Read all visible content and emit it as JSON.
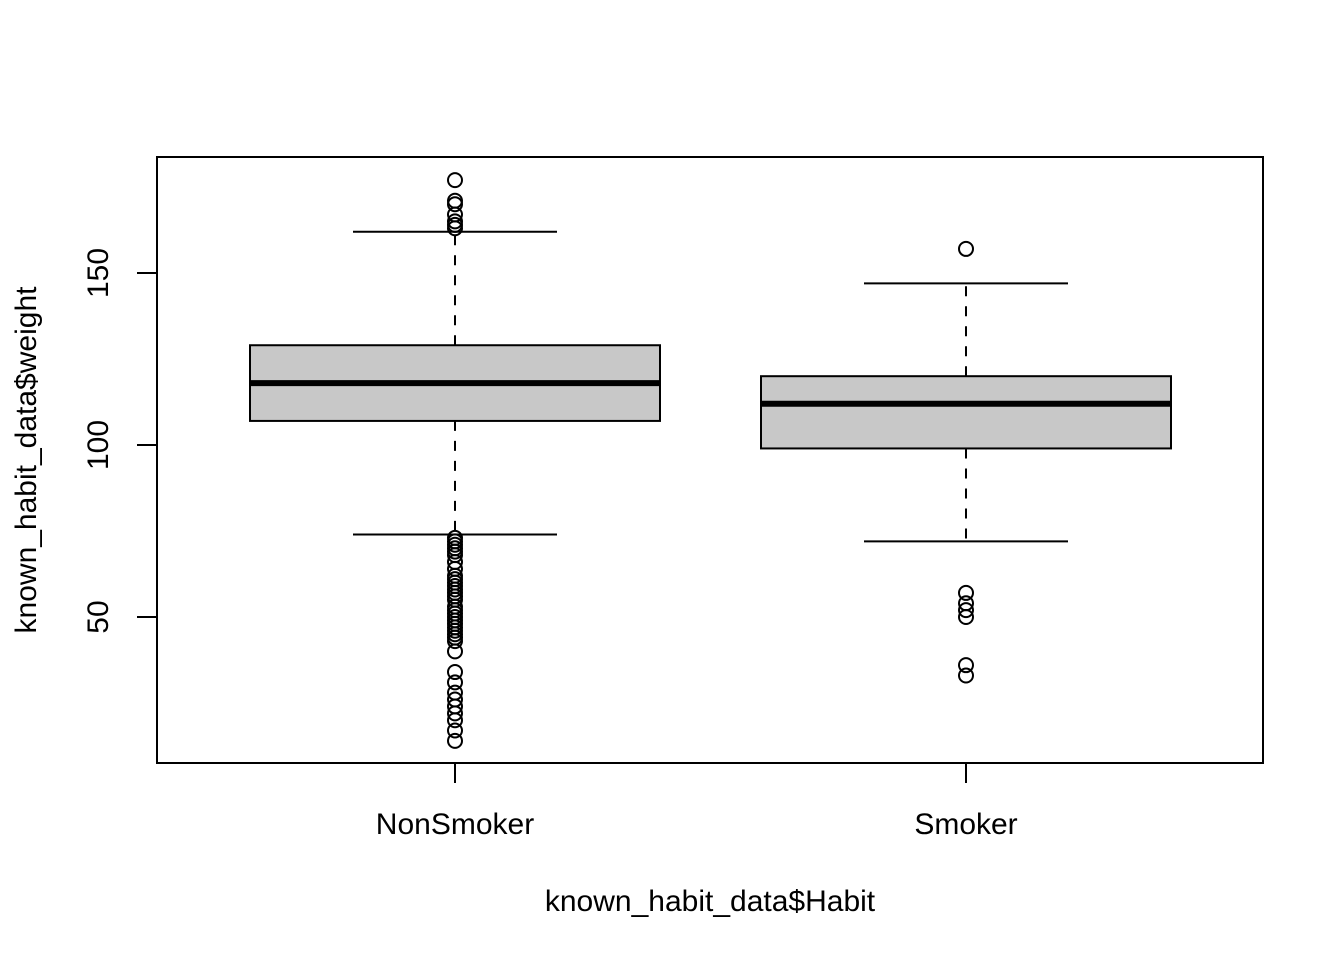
{
  "chart_data": {
    "type": "boxplot",
    "xlabel": "known_habit_data$Habit",
    "ylabel": "known_habit_data$weight",
    "ylim": [
      10,
      180
    ],
    "yticks": [
      50,
      100,
      150
    ],
    "grid": false,
    "box_fill": "#c8c8c8",
    "line_color": "#000000",
    "groups": [
      {
        "name": "NonSmoker",
        "whisker_low": 74,
        "q1": 107,
        "median": 118,
        "q3": 129,
        "whisker_high": 162,
        "outliers": [
          177,
          171,
          170,
          167,
          165,
          164,
          163,
          73,
          72,
          71,
          70,
          69,
          68,
          66,
          64,
          62,
          61,
          60,
          59,
          58,
          57,
          56,
          55,
          53,
          52,
          51,
          50,
          49,
          48,
          47,
          46,
          45,
          44,
          43,
          40,
          34,
          31,
          28,
          26,
          24,
          22,
          20,
          17,
          14
        ]
      },
      {
        "name": "Smoker",
        "whisker_low": 72,
        "q1": 99,
        "median": 112,
        "q3": 120,
        "whisker_high": 147,
        "outliers": [
          157,
          57,
          54,
          52,
          50,
          36,
          33
        ]
      }
    ]
  }
}
